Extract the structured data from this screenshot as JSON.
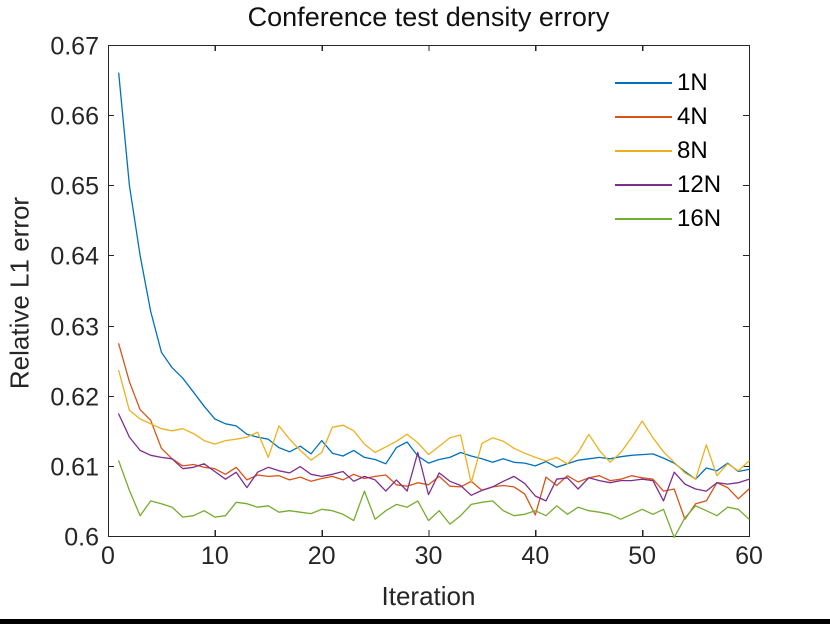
{
  "figure": {
    "title": "Conference test density errory",
    "xlabel": "Iteration",
    "ylabel": "Relative L1 error"
  },
  "chart_data": {
    "type": "line",
    "title": "Conference test density errory",
    "xlabel": "Iteration",
    "ylabel": "Relative L1 error",
    "xlim": [
      0,
      60
    ],
    "ylim": [
      0.6,
      0.67
    ],
    "x_ticks": [
      0,
      10,
      20,
      30,
      40,
      50,
      60
    ],
    "y_ticks": [
      "0.6",
      "0.61",
      "0.62",
      "0.63",
      "0.64",
      "0.65",
      "0.66",
      "0.67"
    ],
    "grid": false,
    "legend_position": "top-right-inside",
    "axis_color": "#262626",
    "tick_label_color": "#262626",
    "x": [
      1,
      2,
      3,
      4,
      5,
      6,
      7,
      8,
      9,
      10,
      11,
      12,
      13,
      14,
      15,
      16,
      17,
      18,
      19,
      20,
      21,
      22,
      23,
      24,
      25,
      26,
      27,
      28,
      29,
      30,
      31,
      32,
      33,
      34,
      35,
      36,
      37,
      38,
      39,
      40,
      41,
      42,
      43,
      44,
      45,
      46,
      47,
      48,
      49,
      50,
      51,
      52,
      53,
      54,
      55,
      56,
      57,
      58,
      59,
      60
    ],
    "series": [
      {
        "name": "1N",
        "color": "#0072BD",
        "values": [
          0.666,
          0.65,
          0.64,
          0.632,
          0.6262,
          0.624,
          0.6225,
          0.6205,
          0.6185,
          0.6167,
          0.616,
          0.6157,
          0.6145,
          0.6141,
          0.6138,
          0.6126,
          0.612,
          0.6128,
          0.6117,
          0.6136,
          0.6118,
          0.6114,
          0.6122,
          0.6112,
          0.6109,
          0.6103,
          0.6126,
          0.6134,
          0.6114,
          0.6104,
          0.6109,
          0.6112,
          0.6119,
          0.6114,
          0.611,
          0.6105,
          0.611,
          0.6105,
          0.6104,
          0.61,
          0.6106,
          0.6098,
          0.6103,
          0.6108,
          0.611,
          0.6112,
          0.611,
          0.6113,
          0.6115,
          0.6116,
          0.6117,
          0.6111,
          0.6104,
          0.6092,
          0.6081,
          0.6097,
          0.6093,
          0.6104,
          0.6092,
          0.6095
        ]
      },
      {
        "name": "4N",
        "color": "#D95319",
        "values": [
          0.6274,
          0.622,
          0.618,
          0.6165,
          0.6125,
          0.611,
          0.61,
          0.6102,
          0.6098,
          0.6096,
          0.6088,
          0.6098,
          0.608,
          0.6087,
          0.6085,
          0.6086,
          0.608,
          0.6084,
          0.6078,
          0.6082,
          0.6085,
          0.608,
          0.6088,
          0.6082,
          0.6085,
          0.6087,
          0.6073,
          0.6071,
          0.6076,
          0.6073,
          0.6085,
          0.6071,
          0.607,
          0.6078,
          0.6065,
          0.607,
          0.6072,
          0.607,
          0.606,
          0.603,
          0.6084,
          0.6072,
          0.6086,
          0.6077,
          0.6083,
          0.6086,
          0.6079,
          0.6081,
          0.6086,
          0.6083,
          0.6081,
          0.6064,
          0.6067,
          0.6024,
          0.6046,
          0.605,
          0.6076,
          0.6069,
          0.6053,
          0.6067
        ]
      },
      {
        "name": "8N",
        "color": "#EDB120",
        "values": [
          0.6236,
          0.6179,
          0.6167,
          0.616,
          0.6153,
          0.615,
          0.6153,
          0.6146,
          0.6136,
          0.6131,
          0.6136,
          0.6138,
          0.6141,
          0.6148,
          0.6112,
          0.6157,
          0.6138,
          0.6122,
          0.6108,
          0.6119,
          0.6155,
          0.6158,
          0.615,
          0.6131,
          0.6119,
          0.6127,
          0.6135,
          0.6145,
          0.6133,
          0.6116,
          0.6128,
          0.614,
          0.6144,
          0.6076,
          0.6132,
          0.614,
          0.6135,
          0.6125,
          0.6118,
          0.6112,
          0.6107,
          0.6112,
          0.6103,
          0.6119,
          0.6145,
          0.6122,
          0.6105,
          0.6119,
          0.614,
          0.6164,
          0.614,
          0.612,
          0.6105,
          0.609,
          0.6081,
          0.613,
          0.6086,
          0.6103,
          0.6093,
          0.6107
        ]
      },
      {
        "name": "12N",
        "color": "#7E2F8E",
        "values": [
          0.6174,
          0.6141,
          0.6122,
          0.6115,
          0.6112,
          0.611,
          0.6096,
          0.6098,
          0.6103,
          0.6092,
          0.6081,
          0.6091,
          0.6069,
          0.6091,
          0.6098,
          0.6093,
          0.609,
          0.6099,
          0.6088,
          0.6085,
          0.6088,
          0.6092,
          0.6078,
          0.6085,
          0.608,
          0.6064,
          0.608,
          0.6064,
          0.6119,
          0.6059,
          0.609,
          0.6078,
          0.6072,
          0.6058,
          0.6065,
          0.607,
          0.6078,
          0.6085,
          0.6075,
          0.6057,
          0.605,
          0.6081,
          0.6083,
          0.6067,
          0.6083,
          0.6079,
          0.6076,
          0.6079,
          0.6079,
          0.6081,
          0.6079,
          0.605,
          0.6091,
          0.6074,
          0.6067,
          0.6064,
          0.6076,
          0.6074,
          0.6076,
          0.6081
        ]
      },
      {
        "name": "16N",
        "color": "#77AC30",
        "values": [
          0.6107,
          0.6065,
          0.6029,
          0.605,
          0.6046,
          0.6041,
          0.6027,
          0.6029,
          0.6036,
          0.6027,
          0.6029,
          0.6048,
          0.6046,
          0.6041,
          0.6043,
          0.6034,
          0.6036,
          0.6034,
          0.6032,
          0.6038,
          0.6036,
          0.6031,
          0.6022,
          0.6064,
          0.6024,
          0.6036,
          0.6045,
          0.6041,
          0.605,
          0.6022,
          0.6036,
          0.6017,
          0.6029,
          0.6045,
          0.6048,
          0.605,
          0.6036,
          0.6029,
          0.6031,
          0.6036,
          0.6029,
          0.6043,
          0.6031,
          0.6041,
          0.6036,
          0.6034,
          0.6031,
          0.6024,
          0.6031,
          0.6038,
          0.6031,
          0.6038,
          0.5998,
          0.6026,
          0.6043,
          0.6036,
          0.6029,
          0.6041,
          0.6038,
          0.6024
        ]
      }
    ]
  }
}
